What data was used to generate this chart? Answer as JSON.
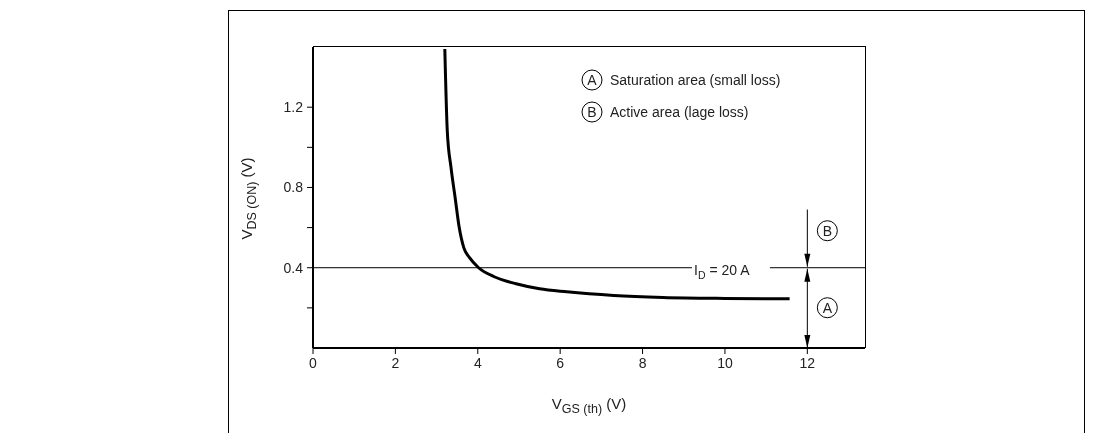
{
  "chart_data": {
    "type": "line",
    "xlabel": "V$_{GS (th)}$ (V)",
    "ylabel": "V$_{DS (ON)}$ (V)",
    "x": [
      3.2,
      3.26,
      3.35,
      3.45,
      3.55,
      3.66,
      3.8,
      4.02,
      4.4,
      4.93,
      5.5,
      6.16,
      7.3,
      8.5,
      10,
      11.57
    ],
    "series": [
      {
        "color": "#000000",
        "values": [
          1.49,
          1.08,
          0.9,
          0.75,
          0.6,
          0.5,
          0.45,
          0.4,
          0.355,
          0.32,
          0.295,
          0.28,
          0.262,
          0.252,
          0.247,
          0.245
        ]
      }
    ],
    "xlim": [
      0,
      13.4
    ],
    "xticks": [
      0,
      2,
      4,
      6,
      8,
      10,
      12
    ],
    "ylim": [
      0,
      1.5
    ],
    "yticks": [
      {
        "value": 0.2,
        "label": null
      },
      0.4,
      {
        "value": 0.6,
        "label": null
      },
      0.8,
      {
        "value": 1.0,
        "label": null
      },
      1.2
    ],
    "ref_lines": [
      {
        "axis": "y",
        "value": 0.4,
        "color": "#000000"
      }
    ],
    "annotations": [
      "A",
      "Saturation area (small loss)",
      "B",
      "Active area (lage loss)",
      "B",
      "A",
      "I$_{D}$ = 20 A"
    ],
    "marker": "none",
    "line_style": "solid"
  }
}
